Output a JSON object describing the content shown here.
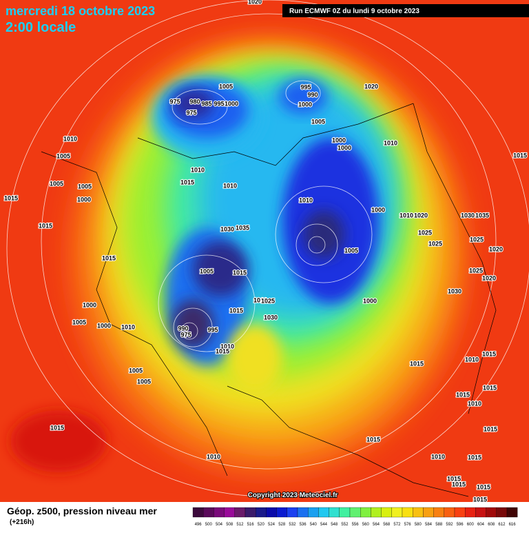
{
  "header": {
    "valid_date": "mercredi 18 octobre 2023",
    "local_time": "2:00 locale",
    "run": "Run ECMWF 0Z du lundi 9 octobre 2023"
  },
  "pressure_labels": [
    1020,
    1005,
    975,
    980,
    985,
    995,
    1000,
    975,
    995,
    990,
    1000,
    1005,
    1020,
    1010,
    1005,
    1010,
    1015,
    1010,
    1000,
    1000,
    1010,
    1015,
    1005,
    1005,
    1000,
    1015,
    1015,
    1010,
    1000,
    1030,
    1035,
    1010,
    1020,
    1030,
    1035,
    1025,
    1025,
    1025,
    1020,
    1015,
    1005,
    1015,
    1005,
    1025,
    1020,
    1000,
    1005,
    1000,
    1010,
    1010,
    1025,
    1015,
    1030,
    1000,
    1030,
    990,
    975,
    995,
    1010,
    1015,
    1005,
    1005,
    1015,
    1010,
    1015,
    1015,
    1015,
    1010,
    1015,
    1010,
    1015,
    1015,
    1010,
    1015,
    1015,
    1015,
    1015,
    1015
  ],
  "copyright": "Copyright 2023 Meteociel.fr",
  "footer": {
    "title": "Géop. z500, pression niveau mer",
    "lead": "(+216h)"
  },
  "legend": {
    "values": [
      496,
      500,
      504,
      508,
      512,
      516,
      520,
      524,
      528,
      532,
      536,
      540,
      544,
      548,
      552,
      556,
      560,
      564,
      568,
      572,
      576,
      580,
      584,
      588,
      592,
      596,
      600,
      604,
      608,
      612,
      616
    ],
    "colors": [
      "#3c0a3c",
      "#5a0a5a",
      "#7a0a7a",
      "#990a99",
      "#6a1a6a",
      "#3a1a6a",
      "#1a1a8a",
      "#0a0aaa",
      "#0a1ad0",
      "#1a40f0",
      "#1a70f0",
      "#1aa0f0",
      "#20c8f0",
      "#30e0d0",
      "#40f0a0",
      "#60f070",
      "#80f040",
      "#b0f020",
      "#d8f010",
      "#f0f020",
      "#f8e010",
      "#f8c010",
      "#f8a010",
      "#f88010",
      "#f86010",
      "#f84010",
      "#e82010",
      "#c81010",
      "#a00808",
      "#780808",
      "#400404"
    ]
  }
}
